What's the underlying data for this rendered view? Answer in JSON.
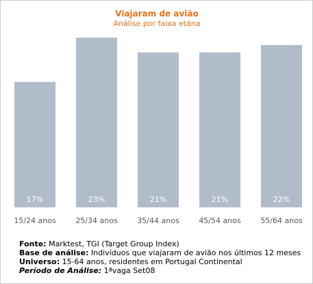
{
  "chart_data": {
    "type": "bar",
    "title": "Viajaram de avião",
    "subtitle": "Análise por faixa etána",
    "categories": [
      "15/24 anos",
      "25/34 anos",
      "35/44 anos",
      "45/54 anos",
      "55/64 anos"
    ],
    "values": [
      17,
      23,
      21,
      21,
      22
    ],
    "value_labels": [
      "17%",
      "23%",
      "21%",
      "21%",
      "22%"
    ],
    "ylim": [
      0,
      23
    ],
    "grid": false,
    "legend": "none",
    "bar_color": "#b1bccb",
    "title_color": "#e8731a"
  },
  "notes": {
    "source_label": "Fonte:",
    "source_text": "Marktest, TGI (Target Group Index)",
    "base_label": "Base de análise:",
    "base_text": "Indivíduos que viajaram de avião nos últimos 12 meses",
    "universe_label": "Universo:",
    "universe_text": "15-64 anos, residentes em Portugal Continental",
    "period_label": "Período de Análise:",
    "period_text": "1ªvaga Set08"
  }
}
